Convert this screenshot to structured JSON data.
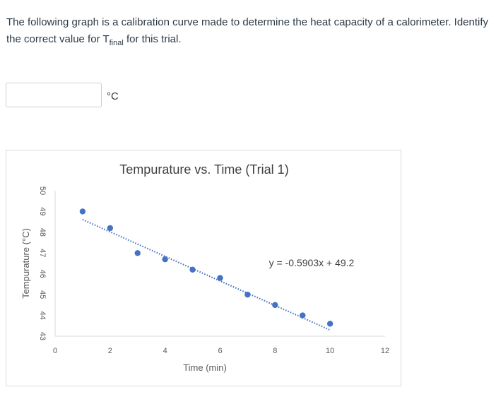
{
  "question": {
    "text_before": "The following graph is a calibration curve made to determine the heat capacity of a calorimeter. Identify the correct value for T",
    "subscript": "final",
    "text_after": " for this trial."
  },
  "answer": {
    "value": "",
    "unit": "°C"
  },
  "chart_data": {
    "type": "scatter",
    "title": "Tempurature vs. Time (Trial 1)",
    "xlabel": "Time (min)",
    "ylabel": "Tempurature (°C)",
    "xlim": [
      0,
      12
    ],
    "ylim": [
      43,
      50
    ],
    "x_ticks": [
      0,
      2,
      4,
      6,
      8,
      10,
      12
    ],
    "y_ticks": [
      43,
      44,
      45,
      46,
      47,
      48,
      49,
      50
    ],
    "x": [
      1,
      2,
      3,
      4,
      5,
      6,
      7,
      8,
      9,
      10
    ],
    "y": [
      49.0,
      48.2,
      47.0,
      46.7,
      46.2,
      45.8,
      45.0,
      44.5,
      44.0,
      43.6
    ],
    "trendline": {
      "slope": -0.5903,
      "intercept": 49.2,
      "x_start": 1,
      "x_end": 10
    },
    "equation_label": "y = -0.5903x + 49.2",
    "grid": false,
    "point_color": "#4472c4",
    "trendline_color": "#4472c4"
  }
}
